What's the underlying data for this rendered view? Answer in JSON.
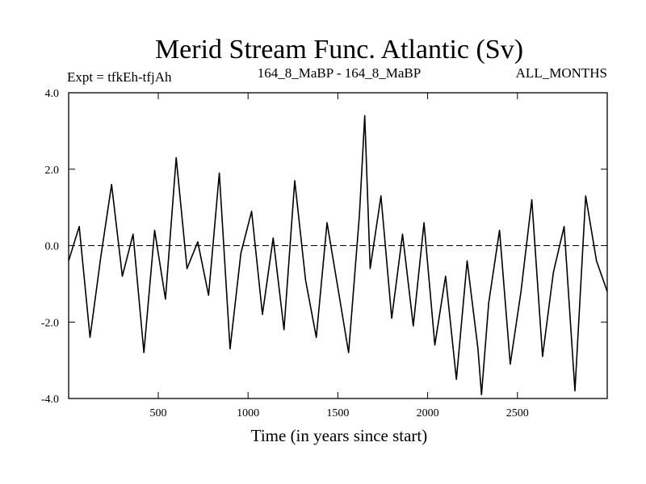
{
  "chart_data": {
    "type": "line",
    "title": "Merid Stream Func. Atlantic (Sv)",
    "subtitle_left": "Expt = tfkEh-tfjAh",
    "subtitle_center": "164_8_MaBP - 164_8_MaBP",
    "subtitle_right": "ALL_MONTHS",
    "xlabel": "Time (in years since start)",
    "ylabel": "",
    "xlim": [
      1,
      3000
    ],
    "ylim": [
      -4.0,
      4.0
    ],
    "xticks": [
      500,
      1000,
      1500,
      2000,
      2500
    ],
    "yticks": [
      -4.0,
      -2.0,
      0.0,
      2.0,
      4.0
    ],
    "xtick_labels": [
      "500",
      "1000",
      "1500",
      "2000",
      "2500"
    ],
    "ytick_labels": [
      "-4.0",
      "-2.0",
      "0.0",
      "2.0",
      "4.0"
    ],
    "zero_line": true,
    "grid": false,
    "series": [
      {
        "color": "#000000",
        "x": [
          1,
          60,
          120,
          180,
          240,
          300,
          360,
          420,
          480,
          540,
          600,
          660,
          720,
          780,
          840,
          900,
          960,
          1020,
          1080,
          1140,
          1200,
          1260,
          1320,
          1380,
          1440,
          1500,
          1560,
          1620,
          1650,
          1680,
          1740,
          1800,
          1860,
          1920,
          1980,
          2040,
          2100,
          2160,
          2220,
          2280,
          2300,
          2340,
          2400,
          2460,
          2520,
          2580,
          2640,
          2700,
          2760,
          2820,
          2880,
          2940,
          3000
        ],
        "values": [
          -0.4,
          0.5,
          -2.4,
          -0.3,
          1.6,
          -0.8,
          0.3,
          -2.8,
          0.4,
          -1.4,
          2.3,
          -0.6,
          0.1,
          -1.3,
          1.9,
          -2.7,
          -0.2,
          0.9,
          -1.8,
          0.2,
          -2.2,
          1.7,
          -0.9,
          -2.4,
          0.6,
          -1.1,
          -2.8,
          0.8,
          3.4,
          -0.6,
          1.3,
          -1.9,
          0.3,
          -2.1,
          0.6,
          -2.6,
          -0.8,
          -3.5,
          -0.4,
          -2.7,
          -3.9,
          -1.5,
          0.4,
          -3.1,
          -1.2,
          1.2,
          -2.9,
          -0.7,
          0.5,
          -3.8,
          1.3,
          -0.4,
          -1.2
        ]
      }
    ]
  }
}
